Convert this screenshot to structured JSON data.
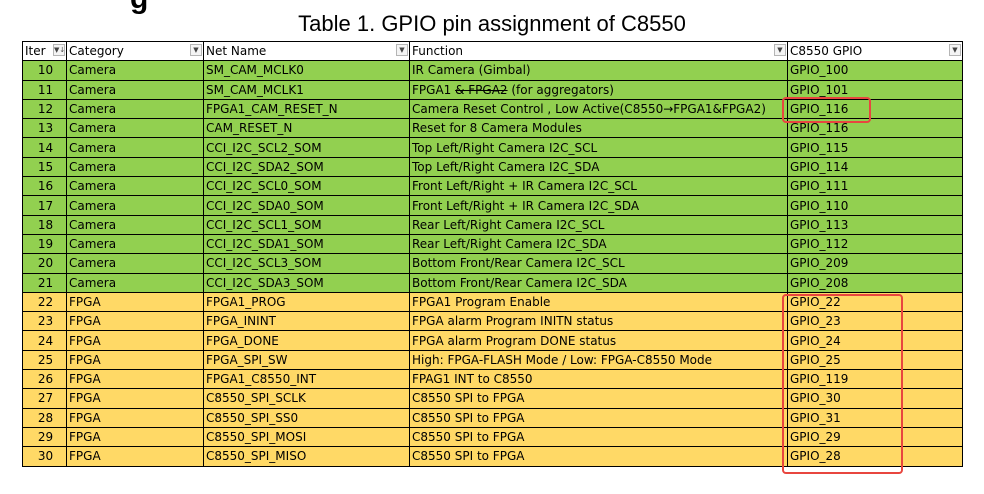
{
  "heading_fragment": "g",
  "caption": "Table 1. GPIO pin assignment of C8550",
  "colors": {
    "camera": "#92d050",
    "fpga": "#ffd966",
    "highlight": "#e8463f"
  },
  "columns": [
    {
      "label": "Iter",
      "filter_icon": "sort-filter-icon"
    },
    {
      "label": "Category",
      "filter_icon": "filter-dropdown-icon"
    },
    {
      "label": "Net Name",
      "filter_icon": "filter-dropdown-icon"
    },
    {
      "label": "Function",
      "filter_icon": "filter-dropdown-icon"
    },
    {
      "label": "C8550 GPIO",
      "filter_icon": "filter-dropdown-icon"
    }
  ],
  "rows": [
    {
      "item": "10",
      "category": "Camera",
      "net": "SM_CAM_MCLK0",
      "function": "IR Camera (Gimbal)",
      "gpio": "GPIO_100"
    },
    {
      "item": "11",
      "category": "Camera",
      "net": "SM_CAM_MCLK1",
      "function": "FPGA1 & FPGA2 (for aggregators)",
      "function_prefix": "FPGA1 ",
      "function_struck": "& FPGA2",
      "function_suffix": " (for aggregators)",
      "gpio": "GPIO_101"
    },
    {
      "item": "12",
      "category": "Camera",
      "net": "FPGA1_CAM_RESET_N",
      "function": "Camera Reset Control , Low Active(C8550→FPGA1&FPGA2)",
      "gpio": "GPIO_116"
    },
    {
      "item": "13",
      "category": "Camera",
      "net": "CAM_RESET_N",
      "function": "Reset for 8  Camera Modules",
      "gpio": "GPIO_116"
    },
    {
      "item": "14",
      "category": "Camera",
      "net": "CCI_I2C_SCL2_SOM",
      "function": "Top Left/Right Camera I2C_SCL",
      "gpio": "GPIO_115"
    },
    {
      "item": "15",
      "category": "Camera",
      "net": "CCI_I2C_SDA2_SOM",
      "function": "Top Left/Right Camera I2C_SDA",
      "gpio": "GPIO_114"
    },
    {
      "item": "16",
      "category": "Camera",
      "net": "CCI_I2C_SCL0_SOM",
      "function": "Front Left/Right + IR Camera I2C_SCL",
      "gpio": "GPIO_111"
    },
    {
      "item": "17",
      "category": "Camera",
      "net": "CCI_I2C_SDA0_SOM",
      "function": "Front Left/Right + IR Camera I2C_SDA",
      "gpio": "GPIO_110"
    },
    {
      "item": "18",
      "category": "Camera",
      "net": "CCI_I2C_SCL1_SOM",
      "function": "Rear Left/Right Camera I2C_SCL",
      "gpio": "GPIO_113"
    },
    {
      "item": "19",
      "category": "Camera",
      "net": "CCI_I2C_SDA1_SOM",
      "function": "Rear Left/Right Camera I2C_SDA",
      "gpio": "GPIO_112"
    },
    {
      "item": "20",
      "category": "Camera",
      "net": "CCI_I2C_SCL3_SOM",
      "function": "Bottom Front/Rear Camera I2C_SCL",
      "gpio": "GPIO_209"
    },
    {
      "item": "21",
      "category": "Camera",
      "net": "CCI_I2C_SDA3_SOM",
      "function": "Bottom Front/Rear Camera I2C_SDA",
      "gpio": "GPIO_208"
    },
    {
      "item": "22",
      "category": "FPGA",
      "net": "FPGA1_PROG",
      "function": "FPGA1 Program Enable",
      "gpio": "GPIO_22"
    },
    {
      "item": "23",
      "category": "FPGA",
      "net": "FPGA_ININT",
      "function": "FPGA alarm Program INITN status",
      "gpio": "GPIO_23"
    },
    {
      "item": "24",
      "category": "FPGA",
      "net": "FPGA_DONE",
      "function": "FPGA alarm Program DONE status",
      "gpio": "GPIO_24"
    },
    {
      "item": "25",
      "category": "FPGA",
      "net": "FPGA_SPI_SW",
      "function": "High: FPGA-FLASH Mode / Low: FPGA-C8550 Mode",
      "gpio": "GPIO_25"
    },
    {
      "item": "26",
      "category": "FPGA",
      "net": "FPGA1_C8550_INT",
      "function": "FPAG1 INT to C8550",
      "gpio": "GPIO_119"
    },
    {
      "item": "27",
      "category": "FPGA",
      "net": "C8550_SPI_SCLK",
      "function": "C8550 SPI to FPGA",
      "gpio": "GPIO_30"
    },
    {
      "item": "28",
      "category": "FPGA",
      "net": "C8550_SPI_SS0",
      "function": "C8550 SPI to FPGA",
      "gpio": "GPIO_31"
    },
    {
      "item": "29",
      "category": "FPGA",
      "net": "C8550_SPI_MOSI",
      "function": "C8550 SPI  to FPGA",
      "gpio": "GPIO_29"
    },
    {
      "item": "30",
      "category": "FPGA",
      "net": "C8550_SPI_MISO",
      "function": "C8550 SPI  to FPGA",
      "gpio": "GPIO_28"
    }
  ]
}
